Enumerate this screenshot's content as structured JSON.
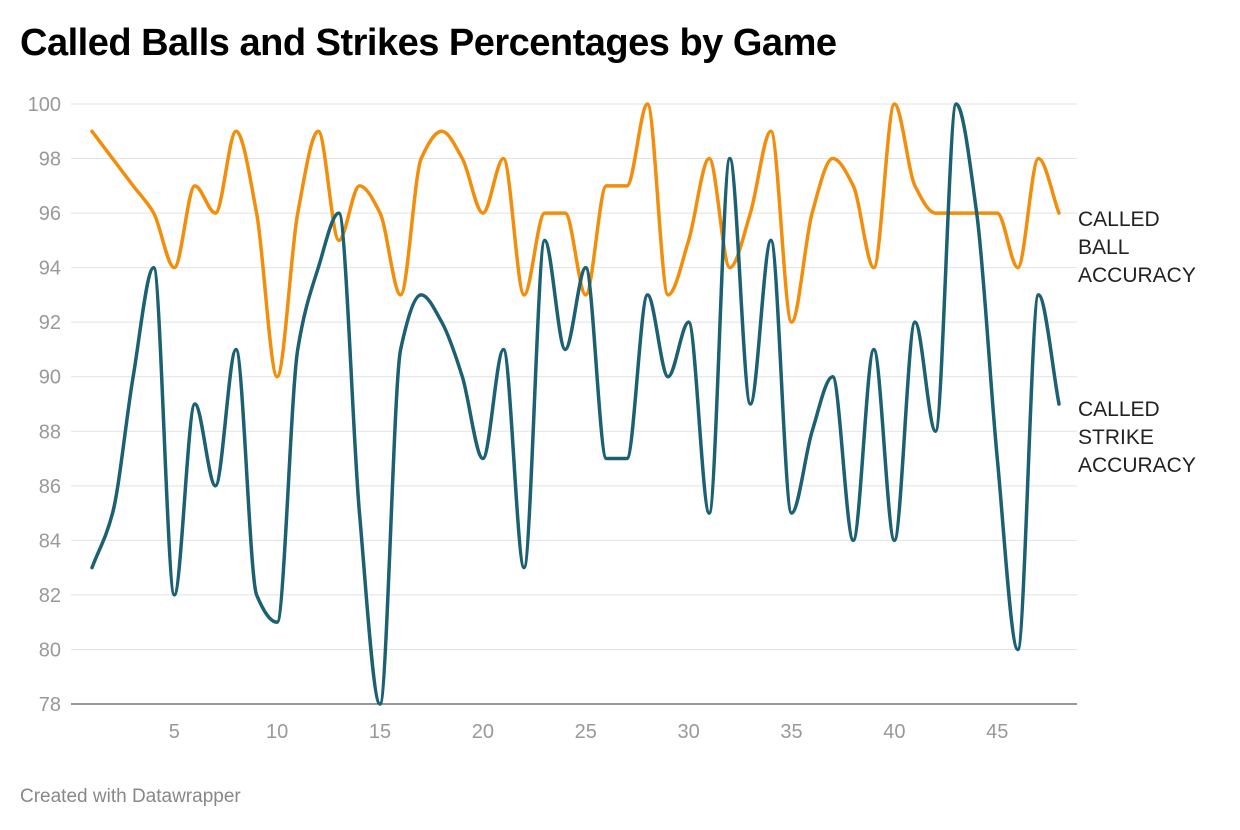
{
  "title": "Called Balls and Strikes Percentages by Game",
  "footer": "Created with Datawrapper",
  "chart_data": {
    "type": "line",
    "title": "Called Balls and Strikes Percentages by Game",
    "xlabel": "",
    "ylabel": "",
    "xlim": [
      1,
      48
    ],
    "ylim": [
      78,
      100
    ],
    "x_ticks": [
      5,
      10,
      15,
      20,
      25,
      30,
      35,
      40,
      45
    ],
    "y_ticks": [
      78,
      80,
      82,
      84,
      86,
      88,
      90,
      92,
      94,
      96,
      98,
      100
    ],
    "grid": "horizontal",
    "x": [
      1,
      2,
      3,
      4,
      5,
      6,
      7,
      8,
      9,
      10,
      11,
      12,
      13,
      14,
      15,
      16,
      17,
      18,
      19,
      20,
      21,
      22,
      23,
      24,
      25,
      26,
      27,
      28,
      29,
      30,
      31,
      32,
      33,
      34,
      35,
      36,
      37,
      38,
      39,
      40,
      41,
      42,
      43,
      44,
      45,
      46,
      47,
      48
    ],
    "series": [
      {
        "name": "CALLED BALL ACCURACY",
        "label_lines": [
          "CALLED",
          "BALL",
          "ACCURACY"
        ],
        "color": "#f28e0b",
        "values": [
          99,
          98,
          97,
          96,
          94,
          97,
          96,
          99,
          96,
          90,
          96,
          99,
          95,
          97,
          96,
          93,
          98,
          99,
          98,
          96,
          98,
          93,
          96,
          96,
          93,
          97,
          97,
          100,
          93,
          95,
          98,
          94,
          96,
          99,
          92,
          96,
          98,
          97,
          94,
          100,
          97,
          96,
          96,
          96,
          96,
          94,
          98,
          96
        ]
      },
      {
        "name": "CALLED STRIKE ACCURACY",
        "label_lines": [
          "CALLED",
          "STRIKE",
          "ACCURACY"
        ],
        "color": "#1b6073",
        "values": [
          83,
          85,
          90,
          94,
          82,
          89,
          86,
          91,
          82,
          81,
          91,
          94,
          96,
          85,
          78,
          91,
          93,
          92,
          90,
          87,
          91,
          83,
          95,
          91,
          94,
          87,
          87,
          93,
          90,
          92,
          85,
          98,
          89,
          95,
          85,
          88,
          90,
          84,
          91,
          84,
          92,
          88,
          100,
          96,
          87,
          80,
          93,
          89
        ]
      }
    ]
  }
}
